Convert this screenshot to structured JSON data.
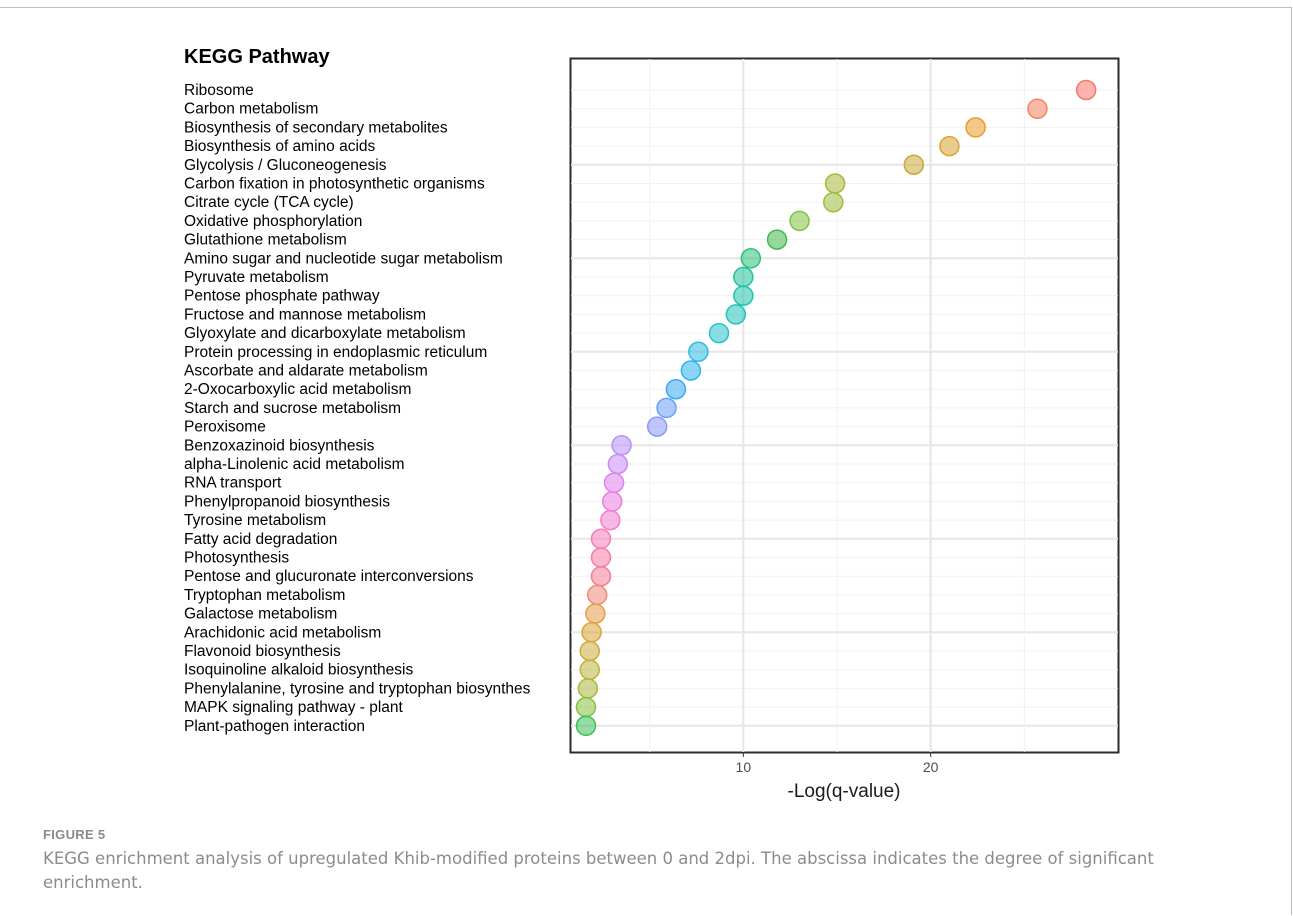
{
  "figure": {
    "label": "FIGURE 5",
    "caption": "KEGG enrichment analysis of upregulated Khib-modified proteins between 0 and 2dpi. The abscissa indicates the degree of significant enrichment."
  },
  "chart_data": {
    "type": "scatter",
    "title": "KEGG Pathway",
    "xlabel": "-Log(q-value)",
    "ylabel": "",
    "xlim": [
      0.8,
      30
    ],
    "xticks": [
      10,
      20
    ],
    "grid": true,
    "categories": [
      "Ribosome",
      "Carbon metabolism",
      "Biosynthesis of secondary metabolites",
      "Biosynthesis of amino acids",
      "Glycolysis / Gluconeogenesis",
      "Carbon fixation in photosynthetic organisms",
      "Citrate cycle (TCA cycle)",
      "Oxidative phosphorylation",
      "Glutathione metabolism",
      "Amino sugar and nucleotide sugar metabolism",
      "Pyruvate metabolism",
      "Pentose phosphate pathway",
      "Fructose and mannose metabolism",
      "Glyoxylate and dicarboxylate metabolism",
      "Protein processing in endoplasmic reticulum",
      "Ascorbate and aldarate metabolism",
      "2-Oxocarboxylic acid metabolism",
      "Starch and sucrose metabolism",
      "Peroxisome",
      "Benzoxazinoid biosynthesis",
      "alpha-Linolenic acid metabolism",
      "RNA transport",
      "Phenylpropanoid biosynthesis",
      "Tyrosine metabolism",
      "Fatty acid degradation",
      "Photosynthesis",
      "Pentose and glucuronate interconversions",
      "Tryptophan metabolism",
      "Galactose metabolism",
      "Arachidonic acid metabolism",
      "Flavonoid biosynthesis",
      "Isoquinoline alkaloid biosynthesis",
      "Phenylalanine, tyrosine and tryptophan biosynthes",
      "MAPK signaling pathway - plant",
      "Plant-pathogen interaction"
    ],
    "values": [
      28.3,
      25.7,
      22.4,
      21.0,
      19.1,
      14.9,
      14.8,
      13.0,
      11.8,
      10.4,
      10.0,
      10.0,
      9.6,
      8.7,
      7.6,
      7.2,
      6.4,
      5.9,
      5.4,
      3.5,
      3.3,
      3.1,
      3.0,
      2.9,
      2.4,
      2.4,
      2.4,
      2.2,
      2.1,
      1.9,
      1.8,
      1.8,
      1.7,
      1.6,
      1.6
    ],
    "colors": [
      "#f8766d",
      "#f4845f",
      "#e89c2a",
      "#d8a432",
      "#c9a83c",
      "#a9b83a",
      "#9bbd3f",
      "#7fc342",
      "#42b84c",
      "#2cc17a",
      "#22c39a",
      "#20c3ad",
      "#22c3b9",
      "#28c2cc",
      "#2cbbe4",
      "#30b3ef",
      "#3aa7f2",
      "#6a9ef8",
      "#8a98fa",
      "#b88ff8",
      "#c98af5",
      "#de82ee",
      "#ec7ee0",
      "#f47ccf",
      "#f77cb6",
      "#f77ca8",
      "#f47e98",
      "#ee8a78",
      "#e69b4a",
      "#dba433",
      "#cdab3a",
      "#bdb43c",
      "#a8ba3c",
      "#86c040",
      "#3ebf5a"
    ]
  }
}
